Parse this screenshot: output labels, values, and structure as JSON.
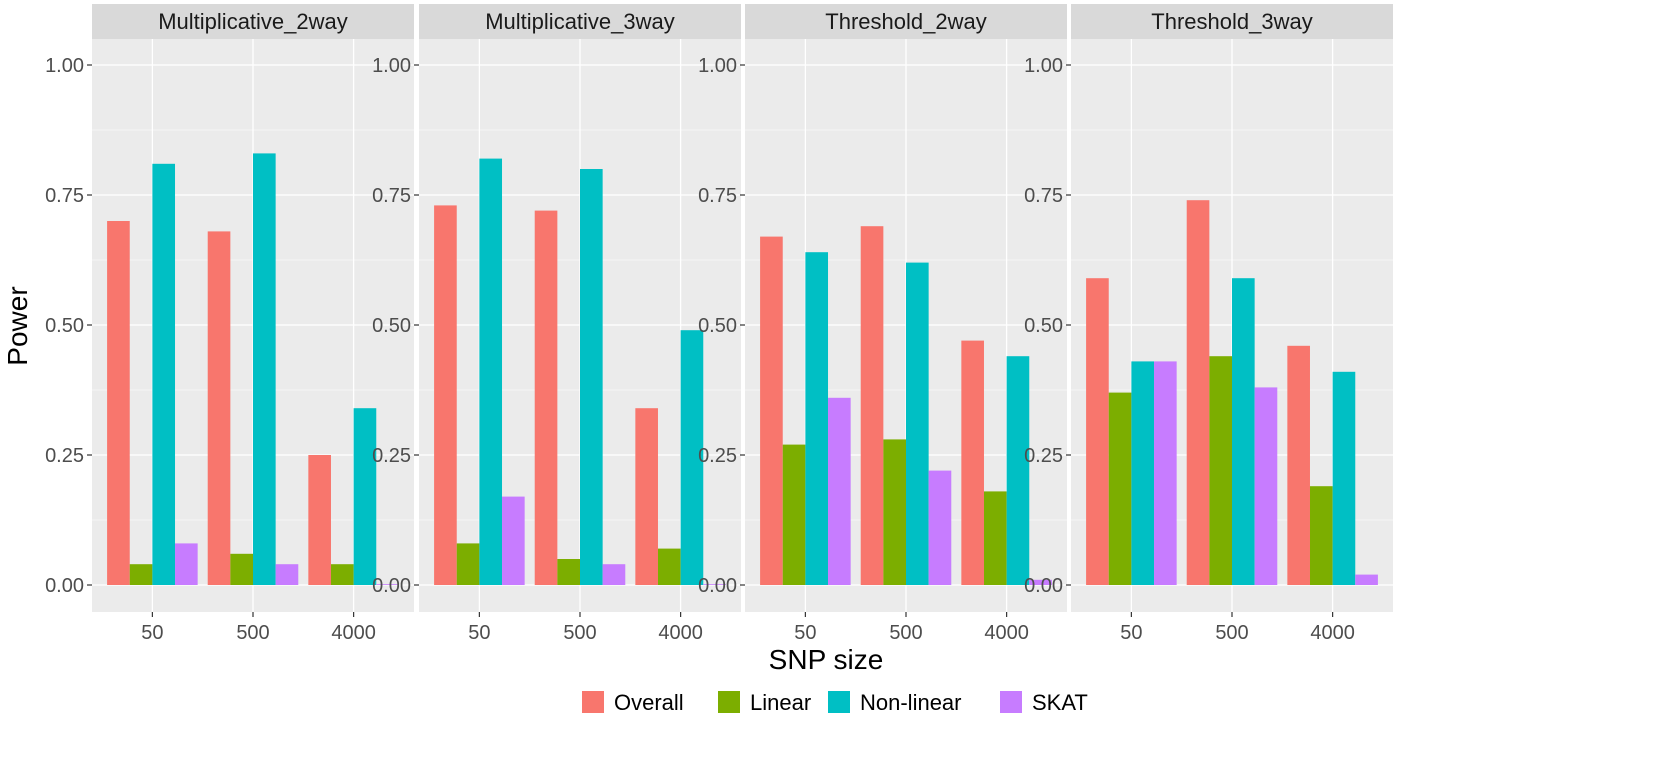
{
  "chart_data": {
    "type": "bar",
    "xlabel": "SNP size",
    "ylabel": "Power",
    "ylim": [
      0,
      1.05
    ],
    "yticks": [
      "0.00",
      "0.25",
      "0.50",
      "0.75",
      "1.00"
    ],
    "categories": [
      "50",
      "500",
      "4000"
    ],
    "legend": {
      "position": "bottom",
      "entries": [
        "Overall",
        "Linear",
        "Non-linear",
        "SKAT"
      ]
    },
    "colors": {
      "Overall": "#F8766D",
      "Linear": "#7CAE00",
      "Non-linear": "#00BFC4",
      "SKAT": "#C77CFF",
      "panel_bg": "#EBEBEB",
      "strip_bg": "#D9D9D9",
      "grid": "#FFFFFF"
    },
    "grid": true,
    "panels": [
      {
        "title": "Multiplicative_2way",
        "series": [
          {
            "name": "Overall",
            "values": [
              0.7,
              0.68,
              0.25
            ]
          },
          {
            "name": "Linear",
            "values": [
              0.04,
              0.06,
              0.04
            ]
          },
          {
            "name": "Non-linear",
            "values": [
              0.81,
              0.83,
              0.34
            ]
          },
          {
            "name": "SKAT",
            "values": [
              0.08,
              0.04,
              0.0
            ]
          }
        ]
      },
      {
        "title": "Multiplicative_3way",
        "series": [
          {
            "name": "Overall",
            "values": [
              0.73,
              0.72,
              0.34
            ]
          },
          {
            "name": "Linear",
            "values": [
              0.08,
              0.05,
              0.07
            ]
          },
          {
            "name": "Non-linear",
            "values": [
              0.82,
              0.8,
              0.49
            ]
          },
          {
            "name": "SKAT",
            "values": [
              0.17,
              0.04,
              0.0
            ]
          }
        ]
      },
      {
        "title": "Threshold_2way",
        "series": [
          {
            "name": "Overall",
            "values": [
              0.67,
              0.69,
              0.47
            ]
          },
          {
            "name": "Linear",
            "values": [
              0.27,
              0.28,
              0.18
            ]
          },
          {
            "name": "Non-linear",
            "values": [
              0.64,
              0.62,
              0.44
            ]
          },
          {
            "name": "SKAT",
            "values": [
              0.36,
              0.22,
              0.01
            ]
          }
        ]
      },
      {
        "title": "Threshold_3way",
        "series": [
          {
            "name": "Overall",
            "values": [
              0.59,
              0.74,
              0.46
            ]
          },
          {
            "name": "Linear",
            "values": [
              0.37,
              0.44,
              0.19
            ]
          },
          {
            "name": "Non-linear",
            "values": [
              0.43,
              0.59,
              0.41
            ]
          },
          {
            "name": "SKAT",
            "values": [
              0.43,
              0.38,
              0.02
            ]
          }
        ]
      }
    ]
  }
}
